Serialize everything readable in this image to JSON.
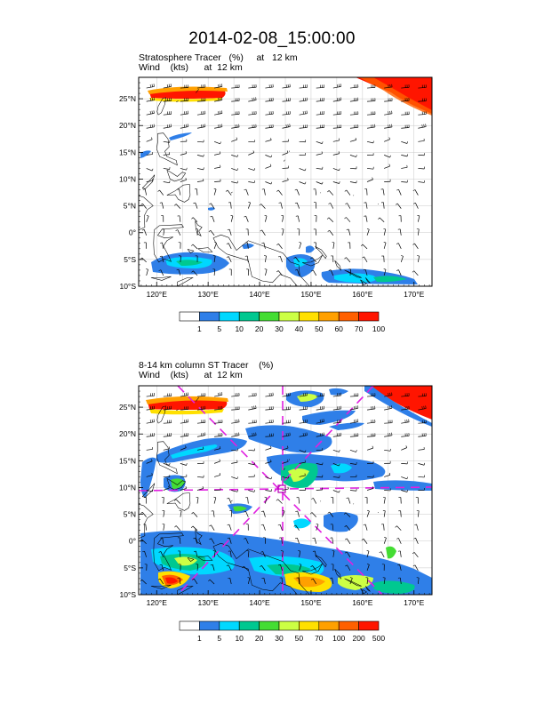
{
  "title": "2014-02-08_15:00:00",
  "panel1": {
    "line1": "Stratosphere Tracer   (%)     at   12 km",
    "line2": "Wind    (kts)      at  12 km",
    "colorbar": {
      "labels": [
        "1",
        "5",
        "10",
        "20",
        "30",
        "40",
        "50",
        "60",
        "70",
        "100"
      ],
      "colors": [
        "#ffffff",
        "#2f7fe8",
        "#00d8ff",
        "#00c890",
        "#44dd33",
        "#ccff44",
        "#ffe000",
        "#ffa000",
        "#ff6000",
        "#ff1500"
      ]
    }
  },
  "panel2": {
    "line1": "8-14 km column ST Tracer    (%)",
    "line2": "Wind    (kts)      at  12 km",
    "colorbar": {
      "labels": [
        "1",
        "5",
        "10",
        "20",
        "30",
        "50",
        "70",
        "100",
        "200",
        "500"
      ],
      "colors": [
        "#ffffff",
        "#2f7fe8",
        "#00d8ff",
        "#00c890",
        "#44dd33",
        "#ccff44",
        "#ffe000",
        "#ffa000",
        "#ff6000",
        "#ff1500"
      ]
    }
  },
  "axes": {
    "lat_labels": [
      "25°N",
      "20°N",
      "15°N",
      "10°N",
      "5°N",
      "0°",
      "5°S",
      "10°S"
    ],
    "lon_labels": [
      "120°E",
      "130°E",
      "140°E",
      "150°E",
      "160°E",
      "170°E"
    ],
    "lat_values": [
      25,
      20,
      15,
      10,
      5,
      0,
      -5,
      -10
    ],
    "lon_values": [
      120,
      130,
      140,
      150,
      160,
      170
    ],
    "lon_range": [
      116.5,
      173.5
    ],
    "lat_range": [
      -10,
      29
    ]
  },
  "colors": {
    "grid": "#c8c8c8",
    "coast": "#000000",
    "cross_section": "#e020e0",
    "barb": "#000000"
  }
}
